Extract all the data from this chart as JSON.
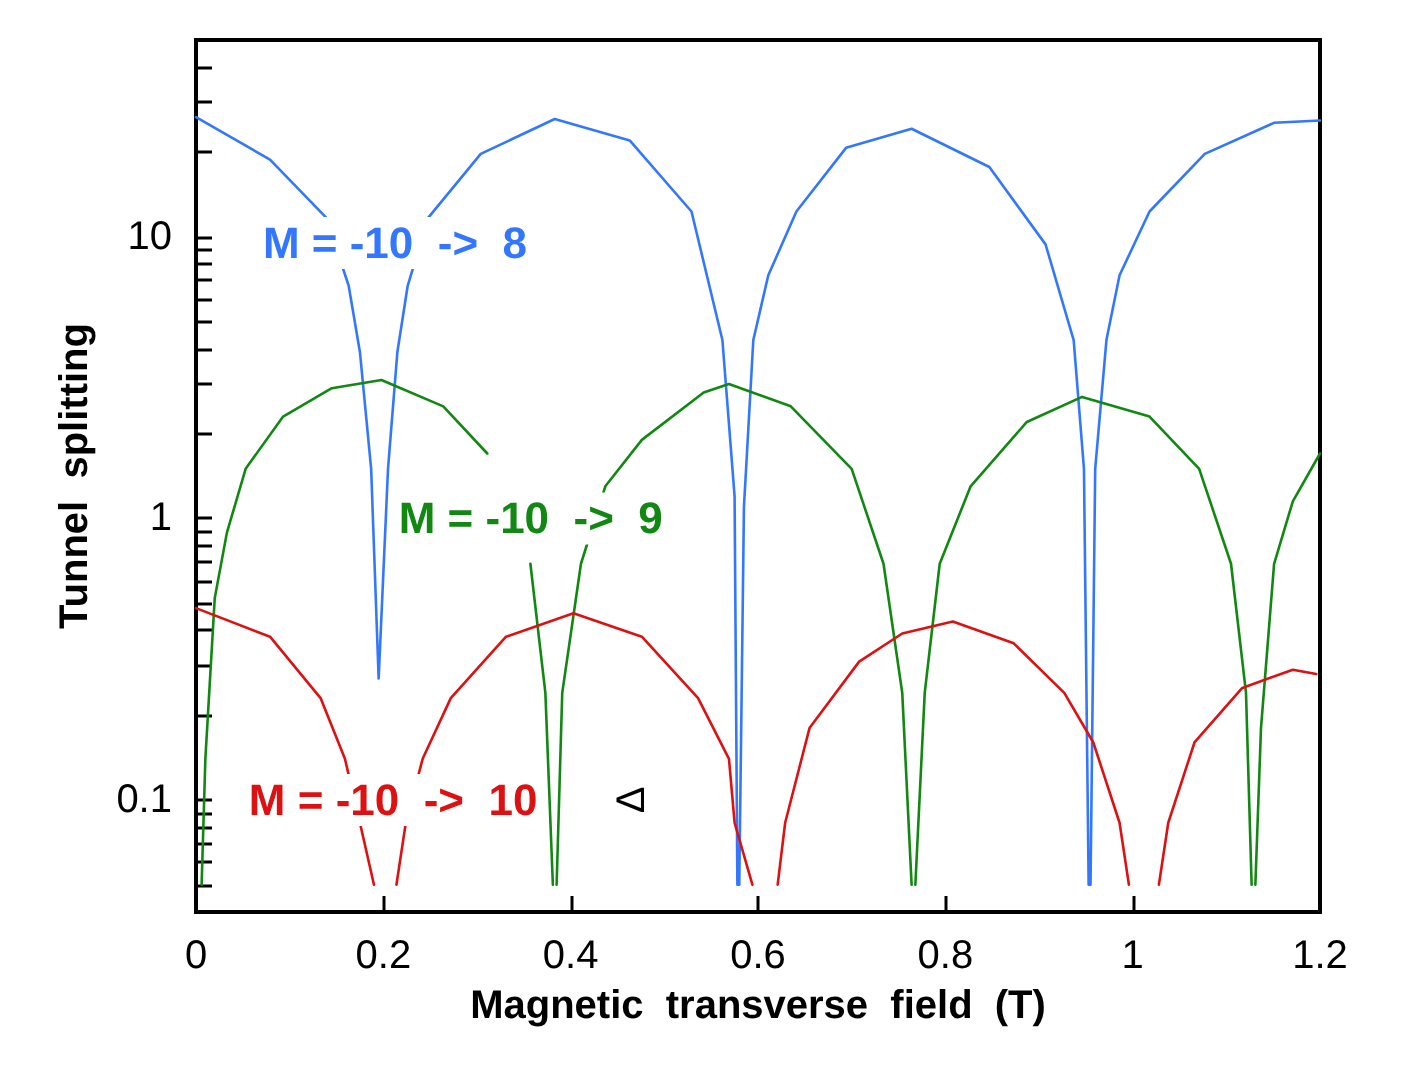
{
  "chart_data": {
    "type": "line",
    "xlabel": "Magnetic  transverse  field  (T)",
    "ylabel": "Tunnel  splitting",
    "log": "y",
    "grid": false,
    "legend": false,
    "marker": "none",
    "line_style": "solid",
    "xlim": [
      0,
      1.2
    ],
    "xticks": [
      0,
      0.2,
      0.4,
      0.6,
      0.8,
      1,
      1.2
    ],
    "ylim": [
      0.04,
      50
    ],
    "yticks": [
      {
        "value": 0.05,
        "label": null
      },
      {
        "value": 0.06,
        "label": null
      },
      {
        "value": 0.07,
        "label": null
      },
      {
        "value": 0.08,
        "label": null
      },
      {
        "value": 0.09,
        "label": null
      },
      0.1,
      {
        "value": 0.2,
        "label": null
      },
      {
        "value": 0.3,
        "label": null
      },
      {
        "value": 0.4,
        "label": null
      },
      {
        "value": 0.5,
        "label": null
      },
      {
        "value": 0.6,
        "label": null
      },
      {
        "value": 0.7,
        "label": null
      },
      {
        "value": 0.8,
        "label": null
      },
      {
        "value": 0.9,
        "label": null
      },
      1,
      {
        "value": 2,
        "label": null
      },
      {
        "value": 3,
        "label": null
      },
      {
        "value": 4,
        "label": null
      },
      {
        "value": 5,
        "label": null
      },
      {
        "value": 6,
        "label": null
      },
      {
        "value": 7,
        "label": null
      },
      {
        "value": 8,
        "label": null
      },
      {
        "value": 9,
        "label": null
      },
      10,
      {
        "value": 20,
        "label": null
      },
      {
        "value": 30,
        "label": null
      },
      {
        "value": 40,
        "label": null
      }
    ],
    "annotations": [
      "Δ"
    ],
    "series": [
      {
        "name": "M = -10  ->  8",
        "color": "#3377ff",
        "x": [
          0,
          0.079,
          0.139,
          0.163,
          0.175,
          0.187,
          0.195,
          0.205,
          0.215,
          0.226,
          0.248,
          0.304,
          0.383,
          0.463,
          0.529,
          0.562,
          0.575,
          0.578,
          0.579,
          0.58,
          0.585,
          0.595,
          0.611,
          0.641,
          0.694,
          0.764,
          0.847,
          0.907,
          0.937,
          0.948,
          0.953,
          0.954,
          0.955,
          0.96,
          0.972,
          0.986,
          1.018,
          1.077,
          1.151,
          1.2
        ],
        "values": [
          26.6,
          18.8,
          11.7,
          6.7,
          3.9,
          1.5,
          0.27,
          1.5,
          3.9,
          6.7,
          11.7,
          19.7,
          26.2,
          22,
          12.3,
          4.3,
          1.2,
          0.05,
          null,
          0.05,
          1.1,
          4.3,
          7.3,
          12.3,
          20.7,
          24.2,
          17.7,
          9.4,
          4.3,
          1.5,
          0.05,
          null,
          0.05,
          1.5,
          4.3,
          7.3,
          12.3,
          19.7,
          25.4,
          25.9
        ]
      },
      {
        "name": "M = -10  ->  9",
        "color": "#118811",
        "x": [
          0.006,
          0.01,
          0.02,
          0.033,
          0.053,
          0.093,
          0.145,
          0.198,
          0.264,
          0.311,
          0.337,
          0.357,
          0.373,
          0.381,
          0.383,
          0.385,
          0.391,
          0.411,
          0.437,
          0.476,
          0.542,
          0.569,
          0.635,
          0.7,
          0.734,
          0.754,
          0.764,
          0.766,
          0.768,
          0.778,
          0.794,
          0.827,
          0.887,
          0.946,
          1.018,
          1.071,
          1.105,
          1.121,
          1.127,
          1.129,
          1.131,
          1.137,
          1.151,
          1.171,
          1.2
        ],
        "values": [
          0.05,
          0.14,
          0.52,
          0.89,
          1.5,
          2.3,
          2.9,
          3.1,
          2.5,
          1.7,
          null,
          0.69,
          0.24,
          0.05,
          null,
          0.05,
          0.24,
          0.69,
          1.3,
          1.9,
          2.8,
          3,
          2.5,
          1.5,
          0.69,
          0.24,
          0.05,
          null,
          0.05,
          0.24,
          0.69,
          1.3,
          2.2,
          2.7,
          2.3,
          1.5,
          0.69,
          0.24,
          0.05,
          null,
          0.05,
          0.18,
          0.69,
          1.15,
          1.7
        ]
      },
      {
        "name": "M = -10  ->  10",
        "color": "#dd1111",
        "x": [
          0,
          0.079,
          0.133,
          0.159,
          0.175,
          0.19,
          0.203,
          0.214,
          0.224,
          0.242,
          0.272,
          0.331,
          0.403,
          0.476,
          0.536,
          0.569,
          0.575,
          0.594,
          0.608,
          0.621,
          0.629,
          0.655,
          0.708,
          0.754,
          0.808,
          0.873,
          0.927,
          0.958,
          0.986,
          0.996,
          1.012,
          1.028,
          1.038,
          1.066,
          1.117,
          1.171,
          1.196
        ],
        "values": [
          0.48,
          0.38,
          0.23,
          0.14,
          0.083,
          0.05,
          null,
          0.05,
          0.083,
          0.14,
          0.23,
          0.38,
          0.46,
          0.38,
          0.23,
          0.14,
          0.083,
          0.05,
          null,
          0.05,
          0.083,
          0.18,
          0.31,
          0.39,
          0.43,
          0.36,
          0.24,
          0.16,
          0.083,
          0.05,
          null,
          0.05,
          0.083,
          0.16,
          0.25,
          0.29,
          0.28
        ]
      }
    ]
  }
}
